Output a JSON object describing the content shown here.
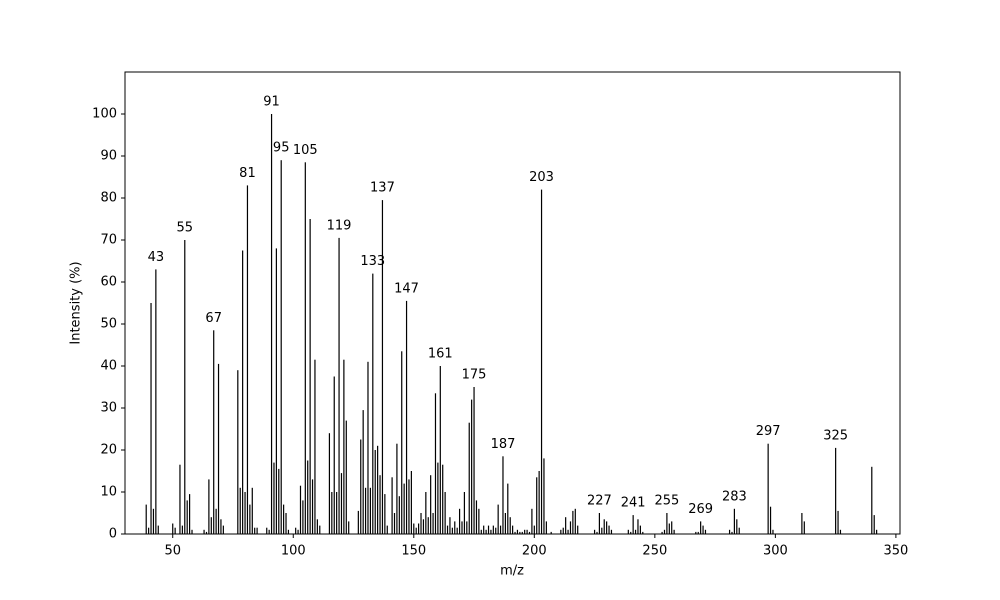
{
  "chart_data": {
    "type": "bar",
    "x_label": "m/z",
    "y_label": "Intensity (%)",
    "color": "#000000",
    "grid": false,
    "xlim": [
      30.2,
      351.7
    ],
    "ylim": [
      0,
      110
    ],
    "xticks": [
      50,
      100,
      150,
      200,
      250,
      300,
      350
    ],
    "yticks": [
      0,
      10,
      20,
      30,
      40,
      50,
      60,
      70,
      80,
      90,
      100
    ],
    "annotations": [
      43,
      55,
      67,
      81,
      91,
      95,
      105,
      119,
      133,
      137,
      147,
      161,
      175,
      187,
      203,
      227,
      241,
      255,
      269,
      283,
      297,
      325
    ],
    "x": [
      39,
      40,
      41,
      42,
      43,
      44,
      50,
      51,
      53,
      54,
      55,
      56,
      57,
      58,
      63,
      64,
      65,
      66,
      67,
      68,
      69,
      70,
      71,
      77,
      78,
      79,
      80,
      81,
      82,
      83,
      84,
      85,
      89,
      90,
      91,
      92,
      93,
      94,
      95,
      96,
      97,
      98,
      101,
      102,
      103,
      104,
      105,
      106,
      107,
      108,
      109,
      110,
      111,
      115,
      116,
      117,
      118,
      119,
      120,
      121,
      122,
      123,
      127,
      128,
      129,
      130,
      131,
      132,
      133,
      134,
      135,
      136,
      137,
      138,
      139,
      141,
      142,
      143,
      144,
      145,
      146,
      147,
      148,
      149,
      150,
      151,
      152,
      153,
      154,
      155,
      156,
      157,
      158,
      159,
      160,
      161,
      162,
      163,
      164,
      165,
      166,
      167,
      168,
      169,
      170,
      171,
      172,
      173,
      174,
      175,
      176,
      177,
      178,
      179,
      180,
      181,
      182,
      183,
      184,
      185,
      186,
      187,
      188,
      189,
      190,
      191,
      192,
      193,
      194,
      195,
      196,
      197,
      198,
      199,
      200,
      201,
      202,
      203,
      204,
      205,
      207,
      211,
      212,
      213,
      214,
      215,
      216,
      217,
      218,
      225,
      226,
      227,
      228,
      229,
      230,
      231,
      232,
      239,
      240,
      241,
      242,
      243,
      244,
      245,
      253,
      254,
      255,
      256,
      257,
      258,
      267,
      268,
      269,
      270,
      271,
      281,
      282,
      283,
      284,
      285,
      297,
      298,
      299,
      311,
      312,
      325,
      326,
      327,
      340,
      341,
      342
    ],
    "values": [
      7,
      1.5,
      55,
      6,
      63,
      2,
      2.5,
      1.5,
      16.5,
      2,
      70,
      8,
      9.5,
      1,
      1,
      0.5,
      13,
      4,
      48.5,
      6,
      40.5,
      3.5,
      2,
      39,
      11,
      67.5,
      10,
      83,
      7,
      11,
      1.5,
      1.5,
      1.5,
      1,
      100,
      17,
      68,
      15.5,
      89,
      7,
      5,
      1,
      1.5,
      1,
      11.5,
      8,
      88.5,
      17.5,
      75,
      13,
      41.5,
      3.5,
      2,
      24,
      10,
      37.5,
      10,
      70.5,
      14.5,
      41.5,
      27,
      3,
      5.5,
      22.5,
      29.5,
      11,
      41,
      11,
      62,
      20,
      21,
      14,
      79.5,
      9.5,
      2,
      13.5,
      5,
      21.5,
      9,
      43.5,
      12,
      55.5,
      13,
      15,
      2.5,
      1.5,
      2.5,
      5,
      3.5,
      10,
      4,
      14,
      5,
      33.5,
      17,
      40,
      16.5,
      10,
      2,
      4,
      1.5,
      3,
      1.5,
      6,
      3,
      10,
      3,
      26.5,
      32,
      35,
      8,
      6,
      1,
      2,
      1,
      2,
      1,
      2,
      1.5,
      7,
      2,
      18.5,
      5,
      12,
      4,
      2,
      0.5,
      1,
      0.5,
      0.5,
      1,
      1,
      0.5,
      6,
      2,
      13.5,
      15,
      82,
      18,
      3,
      0.5,
      1,
      1.5,
      4,
      1,
      3,
      5.5,
      6,
      2,
      1,
      0.5,
      5,
      1.5,
      3.5,
      3,
      2,
      1,
      1,
      0.5,
      4.5,
      1,
      3.5,
      2,
      0.5,
      0.5,
      1,
      5,
      2.5,
      3,
      1,
      0.5,
      0.5,
      3,
      2,
      1,
      1,
      0.5,
      6,
      3.5,
      1.5,
      21.5,
      6.5,
      1,
      5,
      3,
      20.5,
      5.5,
      1,
      16,
      4.5,
      1
    ]
  }
}
